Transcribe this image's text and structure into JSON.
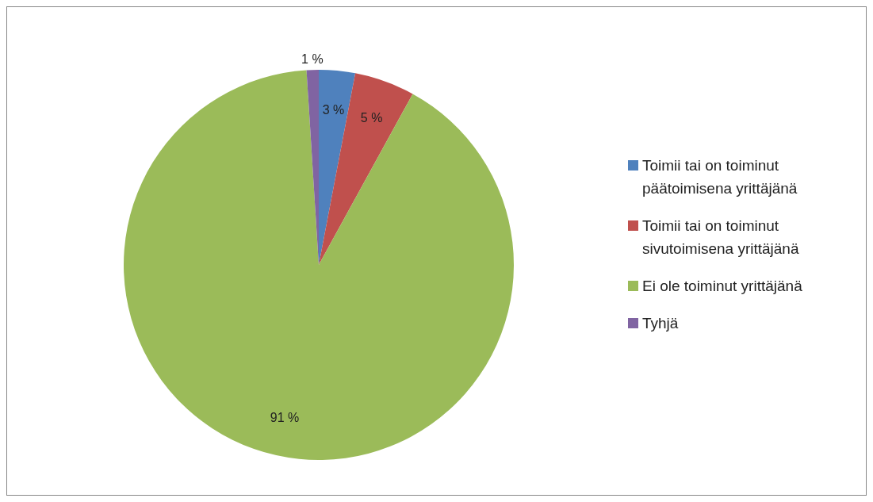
{
  "chart_data": {
    "type": "pie",
    "categories": [
      "Toimii tai on toiminut päätoimisena yrittäjänä",
      "Toimii tai on toiminut sivutoimisena yrittäjänä",
      "Ei ole toiminut yrittäjänä",
      "Tyhjä"
    ],
    "values": [
      3,
      5,
      91,
      1
    ],
    "colors": [
      "#4f81bd",
      "#c0504d",
      "#9bbb59",
      "#8064a2"
    ],
    "value_labels": [
      "3 %",
      "5 %",
      "91 %",
      "1 %"
    ],
    "legend": "right"
  }
}
